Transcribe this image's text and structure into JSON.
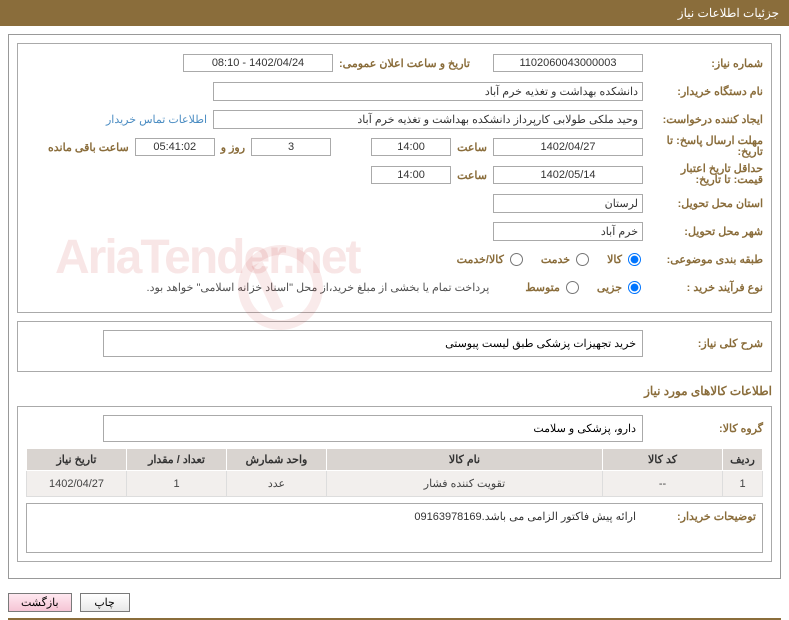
{
  "header": {
    "title": "جزئیات اطلاعات نیاز"
  },
  "form": {
    "need_no_label": "شماره نیاز:",
    "need_no": "1102060043000003",
    "announce_label": "تاریخ و ساعت اعلان عمومی:",
    "announce_value": "1402/04/24 - 08:10",
    "buyer_org_label": "نام دستگاه خریدار:",
    "buyer_org": "دانشکده بهداشت و تغذیه خرم آباد",
    "requester_label": "ایجاد کننده درخواست:",
    "requester": "وحید ملکی طولابی کارپرداز دانشکده بهداشت و تغذیه خرم آباد",
    "contact_link": "اطلاعات تماس خریدار",
    "deadline_label": "مهلت ارسال پاسخ:",
    "to_date_label": "تا تاریخ:",
    "deadline_date": "1402/04/27",
    "time_label": "ساعت",
    "deadline_time": "14:00",
    "days_value": "3",
    "days_and": "روز و",
    "time_remaining": "05:41:02",
    "remaining_label": "ساعت باقی مانده",
    "price_valid_label": "حداقل تاریخ اعتبار قیمت:",
    "price_valid_date": "1402/05/14",
    "price_valid_time": "14:00",
    "province_label": "استان محل تحویل:",
    "province": "لرستان",
    "city_label": "شهر محل تحویل:",
    "city": "خرم آباد",
    "classify_label": "طبقه بندی موضوعی:",
    "radio_goods": "کالا",
    "radio_service": "خدمت",
    "radio_both": "کالا/خدمت",
    "process_label": "نوع فرآیند خرید :",
    "radio_minor": "جزيی",
    "radio_medium": "متوسط",
    "payment_note": "پرداخت تمام یا بخشی از مبلغ خرید،از محل \"اسناد خزانه اسلامی\" خواهد بود."
  },
  "general": {
    "desc_label": "شرح کلی نیاز:",
    "desc": "خرید تجهیزات پزشکی طبق لیست پیوستی"
  },
  "goods": {
    "section_title": "اطلاعات کالاهای مورد نیاز",
    "group_label": "گروه کالا:",
    "group": "دارو، پزشکی و سلامت"
  },
  "table": {
    "headers": {
      "row": "ردیف",
      "code": "کد کالا",
      "name": "نام کالا",
      "unit": "واحد شمارش",
      "qty": "تعداد / مقدار",
      "date": "تاریخ نیاز"
    },
    "rows": [
      {
        "row": "1",
        "code": "--",
        "name": "تقویت کننده فشار",
        "unit": "عدد",
        "qty": "1",
        "date": "1402/04/27"
      }
    ]
  },
  "comment": {
    "label": "توضیحات خریدار:",
    "text": "ارائه پیش فاکتور الزامی می باشد.09163978169"
  },
  "buttons": {
    "print": "چاپ",
    "back": "بازگشت"
  },
  "watermark": "AriaTender.net"
}
